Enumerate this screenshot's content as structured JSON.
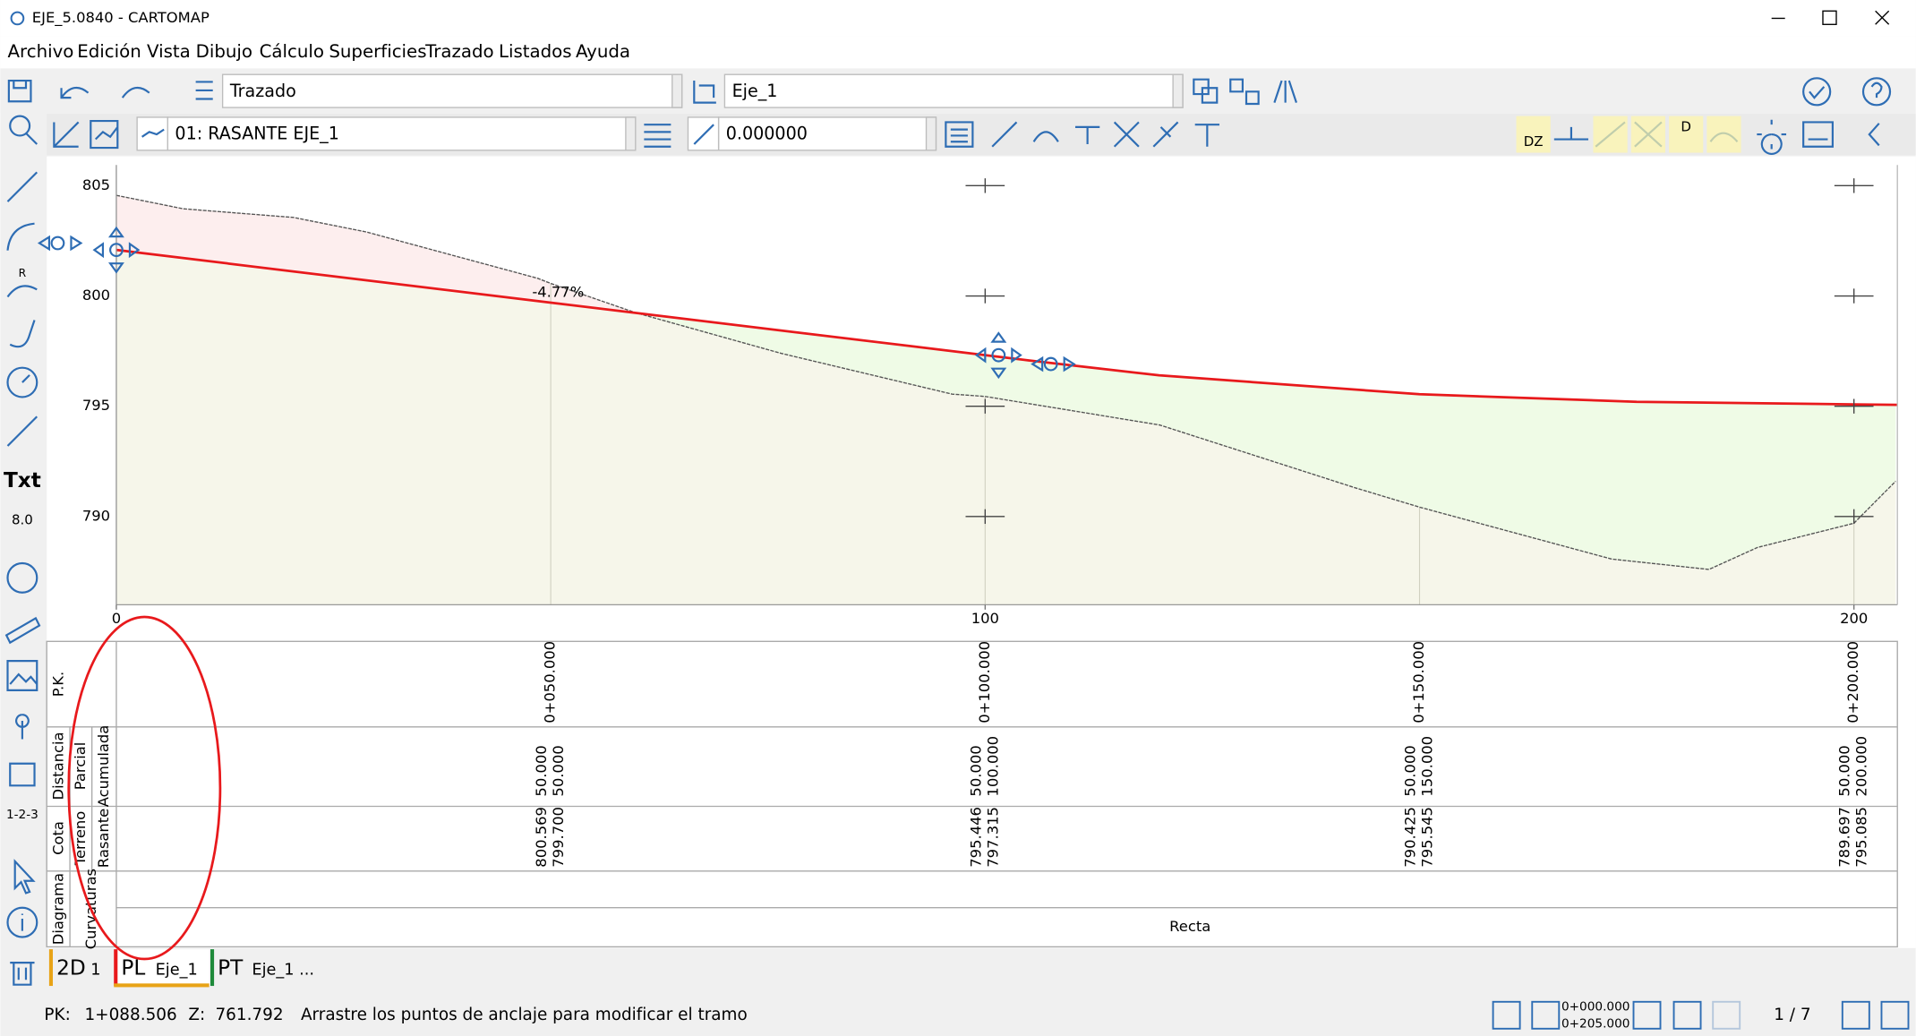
{
  "window": {
    "title": "EJE_5.0840 - CARTOMAP"
  },
  "menu": [
    "Archivo",
    "Edición",
    "Vista",
    "Dibujo",
    "Cálculo",
    "Superficies",
    "Trazado",
    "Listados",
    "Ayuda"
  ],
  "toolbar": {
    "layer": "Trazado",
    "axis": "Eje_1",
    "profile": "01: RASANTE EJE_1",
    "slope": "0.000000"
  },
  "tool_labels": {
    "radius": "R",
    "text": "Txt",
    "dimension": "8.0",
    "numbering": "1-2-3",
    "dz": "DZ",
    "distance": "D"
  },
  "chart_data": {
    "type": "line",
    "xlim": [
      0,
      205
    ],
    "ylim": [
      786,
      805.94
    ],
    "xticks": [
      0,
      100,
      200
    ],
    "yticks": [
      805,
      800,
      795,
      790
    ],
    "grade_label": "-4.77%",
    "terrain": {
      "color": "#555555",
      "x": [
        0,
        7.7,
        20.4,
        28.8,
        48.5,
        50,
        59.7,
        76.5,
        96.2,
        100,
        120.1,
        142.6,
        150,
        172.1,
        183.3,
        188.9,
        200,
        204.8
      ],
      "values": [
        804.56,
        803.95,
        803.56,
        802.9,
        800.8,
        800.569,
        799.25,
        797.4,
        795.55,
        795.446,
        794.15,
        791.3,
        790.425,
        788.07,
        787.6,
        788.6,
        789.697,
        791.6
      ]
    },
    "rasante": {
      "color": "#e8191c",
      "x": [
        0,
        50,
        100,
        105,
        120,
        150,
        175,
        200,
        205
      ],
      "values": [
        802.085,
        799.7,
        797.315,
        797.08,
        796.4,
        795.545,
        795.2,
        795.085,
        795.06
      ]
    }
  },
  "table": {
    "row_labels": {
      "pk": "P.K.",
      "distance": "Distancia",
      "partial": "Parcial",
      "cumulative": "Acumulada",
      "elevation": "Cota",
      "terrain": "Terreno",
      "grade": "Rasante",
      "diagram": "Diagrama",
      "curvature": "Curvaturas"
    },
    "columns": [
      {
        "pk": "0+050.000",
        "partial": "50.000",
        "cumulative": "50.000",
        "terrain": "800.569",
        "grade": "799.700"
      },
      {
        "pk": "0+100.000",
        "partial": "50.000",
        "cumulative": "100.000",
        "terrain": "795.446",
        "grade": "797.315"
      },
      {
        "pk": "0+150.000",
        "partial": "50.000",
        "cumulative": "150.000",
        "terrain": "790.425",
        "grade": "795.545"
      },
      {
        "pk": "0+200.000",
        "partial": "50.000",
        "cumulative": "200.000",
        "terrain": "789.697",
        "grade": "795.085"
      }
    ],
    "curvature": "Recta"
  },
  "tabs": [
    {
      "kind": "2D",
      "label": "1",
      "color": "#e8a317"
    },
    {
      "kind": "PL",
      "label": "Eje_1",
      "color": "#e8191c"
    },
    {
      "kind": "PT",
      "label": "Eje_1 ...",
      "color": "#1e8a3a"
    }
  ],
  "status": {
    "pk_label": "PK:",
    "pk": "1+088.506",
    "z_label": "Z:",
    "z": "761.792",
    "message": "Arrastre los puntos de anclaje para modificar el tramo",
    "range_start": "0+000.000",
    "range_end": "0+205.000",
    "page": "1 / 7"
  }
}
